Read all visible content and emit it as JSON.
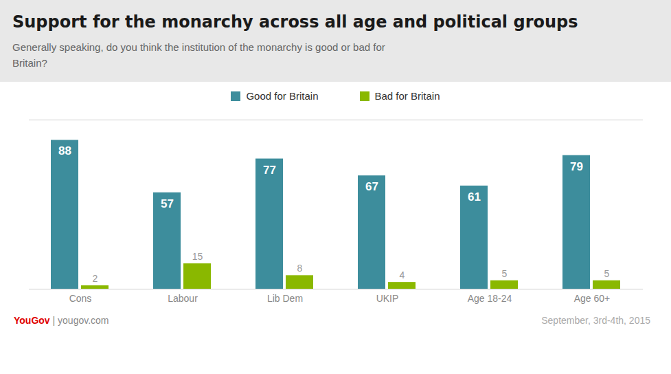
{
  "chart_data": {
    "type": "bar",
    "title": "Support for the monarchy across all age and political groups",
    "subtitle": "Generally speaking, do you think the institution of the monarchy is good or bad for\nBritain?",
    "categories": [
      "Cons",
      "Labour",
      "Lib Dem",
      "UKIP",
      "Age 18-24",
      "Age 60+"
    ],
    "series": [
      {
        "name": "Good for Britain",
        "color": "#3d8d9c",
        "values": [
          88,
          57,
          77,
          67,
          61,
          79
        ]
      },
      {
        "name": "Bad for Britain",
        "color": "#8ab800",
        "values": [
          2,
          15,
          8,
          4,
          5,
          5
        ]
      }
    ],
    "ylim": [
      0,
      100
    ],
    "yticks": [],
    "grid": false,
    "legend": "top",
    "data_labels": true,
    "tick_labels": "x",
    "annotations": [
      {
        "text": "YouGov",
        "color": "#e00000"
      },
      {
        "text": " | yougov.com"
      },
      {
        "text": "September, 3rd-4th, 2015"
      }
    ]
  }
}
